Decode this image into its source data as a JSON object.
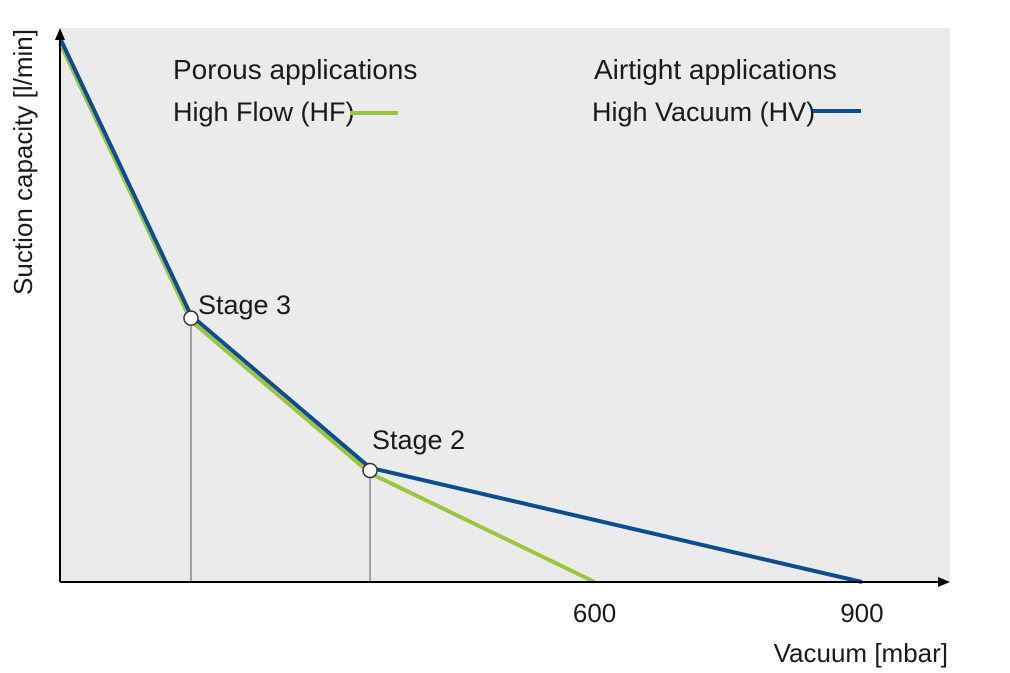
{
  "chart_data": {
    "type": "line",
    "title": "",
    "xlabel": "Vacuum [mbar]",
    "ylabel": "Suction capacity [l/min]",
    "xlim": [
      0,
      1000
    ],
    "ylim": [
      0,
      100
    ],
    "xticks": [
      {
        "value": 600,
        "label": "600"
      },
      {
        "value": 900,
        "label": "900"
      }
    ],
    "grid": false,
    "legend_position": "top",
    "legend_groups": [
      {
        "heading": "Porous applications",
        "series_index": 0
      },
      {
        "heading": "Airtight applications",
        "series_index": 1
      }
    ],
    "series": [
      {
        "name": "High Flow (HF)",
        "color": "#9bc53d",
        "points": [
          [
            0,
            99
          ],
          [
            147,
            48
          ],
          [
            348,
            20
          ],
          [
            600,
            0
          ]
        ]
      },
      {
        "name": "High Vacuum (HV)",
        "color": "#0d4c93",
        "points": [
          [
            0,
            100
          ],
          [
            147,
            49
          ],
          [
            348,
            21
          ],
          [
            900,
            0
          ]
        ]
      }
    ],
    "annotations": [
      {
        "label": "Stage 3",
        "x": 147,
        "y": 48.5
      },
      {
        "label": "Stage 2",
        "x": 348,
        "y": 20.5
      }
    ],
    "plot_background": "#ebebeb"
  }
}
